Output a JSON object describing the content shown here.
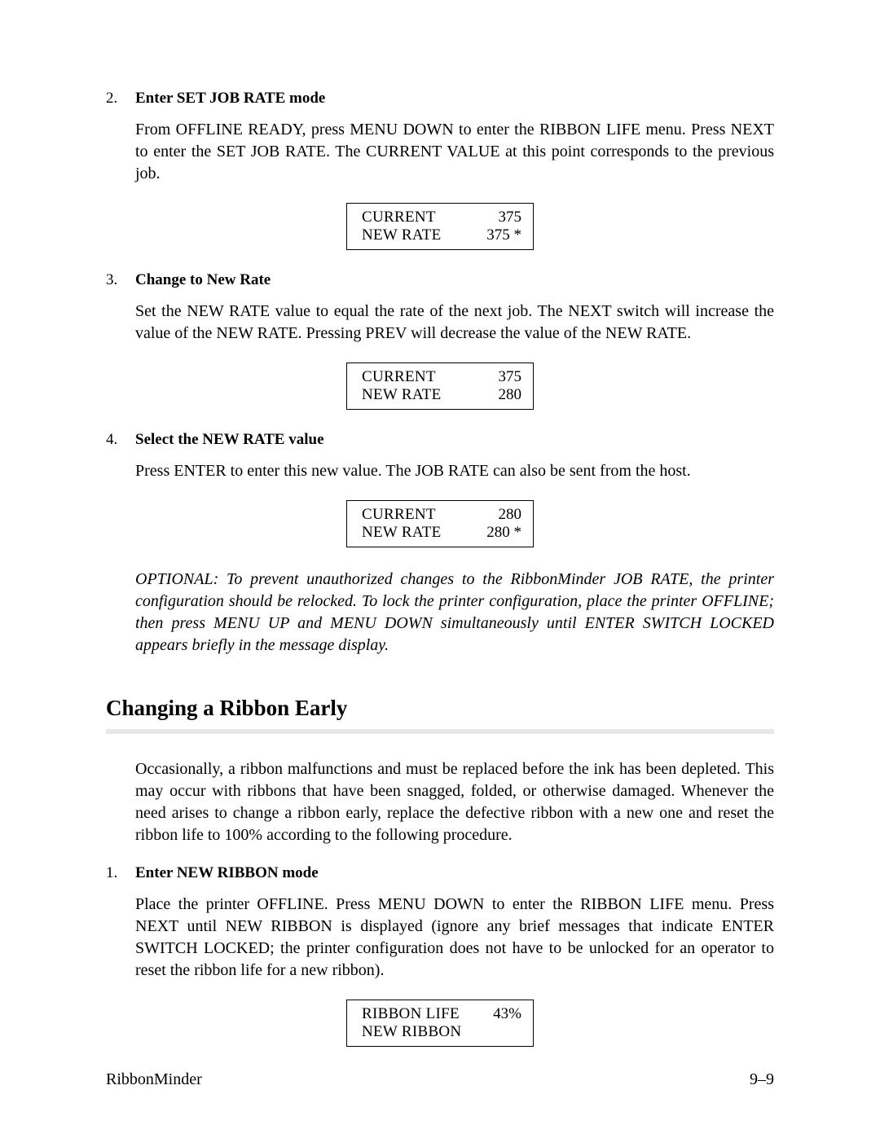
{
  "step2": {
    "num": "2.",
    "title": "Enter SET JOB RATE mode",
    "body": "From OFFLINE READY, press MENU DOWN to enter the RIBBON LIFE menu. Press NEXT to enter the SET JOB RATE. The CURRENT VALUE at this point corresponds to the previous job.",
    "display": {
      "r1_label": "CURRENT",
      "r1_val": "375",
      "r2_label": "NEW RATE",
      "r2_val": "375 *"
    }
  },
  "step3": {
    "num": "3.",
    "title": "Change to New Rate",
    "body": "Set the NEW RATE value to equal the rate of the next job. The NEXT switch will increase the value of the NEW RATE. Pressing PREV will decrease the value of the NEW RATE.",
    "display": {
      "r1_label": "CURRENT",
      "r1_val": "375",
      "r2_label": "NEW RATE",
      "r2_val": "280"
    }
  },
  "step4": {
    "num": "4.",
    "title": "Select the NEW RATE value",
    "body": "Press ENTER to enter this new value. The JOB RATE can also be sent from the host.",
    "display": {
      "r1_label": "CURRENT",
      "r1_val": "280",
      "r2_label": "NEW RATE",
      "r2_val": "280 *"
    }
  },
  "optional_note": "OPTIONAL: To prevent unauthorized changes to the RibbonMinder JOB RATE, the printer configuration should be relocked. To lock the printer configuration, place the printer OFFLINE; then press MENU UP and MENU DOWN simultaneously until ENTER SWITCH LOCKED appears briefly in the message display.",
  "section": {
    "heading": "Changing a Ribbon Early",
    "intro": "Occasionally, a ribbon malfunctions and must be replaced before the ink has been depleted. This may occur with ribbons that have been snagged, folded, or otherwise damaged. Whenever the need arises to change a ribbon early, replace the defective ribbon with a new one and reset the ribbon life to 100% according to the following procedure."
  },
  "step1b": {
    "num": "1.",
    "title": "Enter NEW RIBBON mode",
    "body": "Place the printer OFFLINE. Press MENU DOWN to enter the RIBBON LIFE menu. Press NEXT until NEW RIBBON is displayed (ignore any brief messages that indicate ENTER SWITCH LOCKED; the printer configuration does not have to be unlocked for an operator to reset the ribbon life for a new ribbon).",
    "display": {
      "r1_label": "RIBBON LIFE",
      "r1_val": "43%",
      "r2_label": "NEW RIBBON",
      "r2_val": ""
    }
  },
  "footer": {
    "left": "RibbonMinder",
    "right": "9–9"
  }
}
